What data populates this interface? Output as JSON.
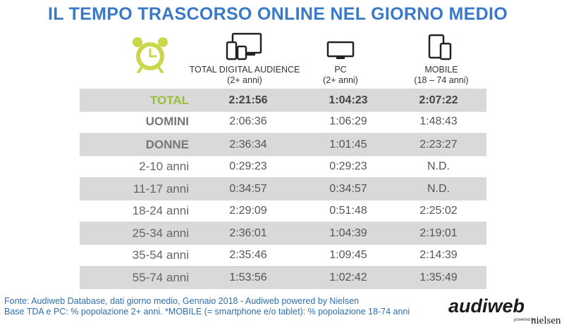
{
  "title": "IL TEMPO TRASCORSO ONLINE NEL GIORNO MEDIO",
  "icons": {
    "clock": "alarm-clock-icon",
    "tda": "multi-device-icon",
    "pc": "monitor-icon",
    "mobile": "smartphone-tablet-icon"
  },
  "colors": {
    "title": "#3a78c8",
    "total_label": "#9bbb3a",
    "shade": "#d9d9d9",
    "footer": "#2f6fae",
    "clock": "#c9d84a"
  },
  "columns": [
    {
      "name": "TOTAL DIGITAL AUDIENCE",
      "sub": "(2+ anni)"
    },
    {
      "name": "PC",
      "sub": "(2+ anni)"
    },
    {
      "name": "MOBILE",
      "sub": "(18 – 74 anni)"
    }
  ],
  "rows": [
    {
      "label": "TOTAL",
      "values": [
        "2:21:56",
        "1:04:23",
        "2:07:22"
      ]
    },
    {
      "label": "UOMINI",
      "values": [
        "2:06:36",
        "1:06:29",
        "1:48:43"
      ]
    },
    {
      "label": "DONNE",
      "values": [
        "2:36:34",
        "1:01:45",
        "2:23:27"
      ]
    },
    {
      "label": "2-10 anni",
      "values": [
        "0:29:23",
        "0:29:23",
        "N.D."
      ]
    },
    {
      "label": "11-17 anni",
      "values": [
        "0:34:57",
        "0:34:57",
        "N.D."
      ]
    },
    {
      "label": "18-24 anni",
      "values": [
        "2:29:09",
        "0:51:48",
        "2:25:02"
      ]
    },
    {
      "label": "25-34 anni",
      "values": [
        "2:36:01",
        "1:04:39",
        "2:19:01"
      ]
    },
    {
      "label": "35-54 anni",
      "values": [
        "2:35:46",
        "1:09:45",
        "2:14:39"
      ]
    },
    {
      "label": "55-74 anni",
      "values": [
        "1:53:56",
        "1:02:42",
        "1:35:49"
      ]
    }
  ],
  "footer": {
    "line1": "Fonte: Audiweb Database, dati giorno medio, Gennaio 2018 - Audiweb powered by Nielsen",
    "line2": "Base TDA e PC: % popolazione 2+ anni. *MOBILE (= smartphone e/o tablet): % popolazione 18-74 anni"
  },
  "logo": {
    "name": "audiweb",
    "powered": "powered by",
    "partner": "nielsen"
  }
}
